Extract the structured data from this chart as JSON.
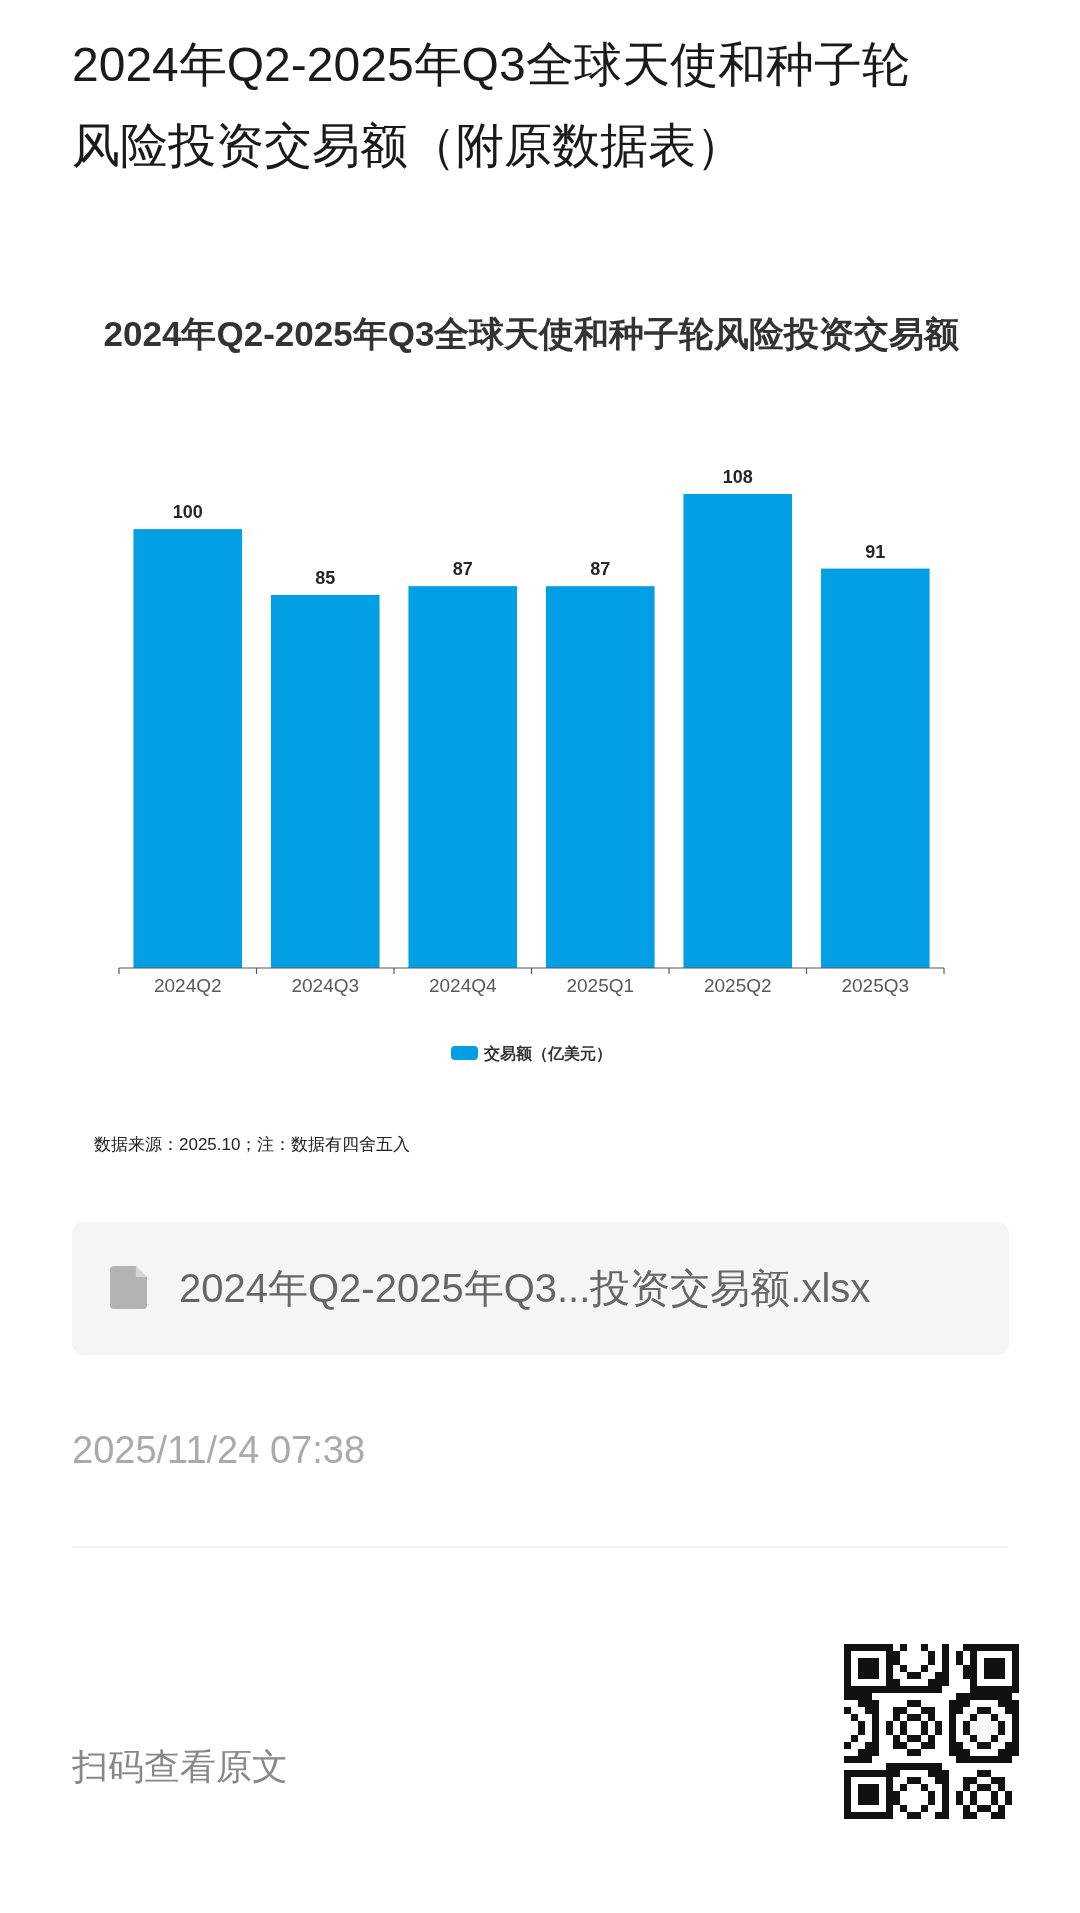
{
  "chart_data": {
    "type": "bar",
    "title": "2024年Q2-2025年Q3全球天使和种子轮风险投资交易额（附原数据表）",
    "subtitle": "2024年Q2-2025年Q3全球天使和种子轮风险投资交易额",
    "categories": [
      "2024Q2",
      "2024Q3",
      "2024Q4",
      "2025Q1",
      "2025Q2",
      "2025Q3"
    ],
    "series": [
      {
        "name": "交易额（亿美元）",
        "color": "#039fe5",
        "values": [
          100,
          85,
          87,
          87,
          108,
          91
        ]
      }
    ],
    "data_labels": true,
    "legend": "bottom",
    "tick_labels": "x",
    "annotations": [
      "数据来源：2025.10；注：数据有四舍五入",
      "2024年Q2-2025年Q3...投资交易额.xlsx",
      "2025/11/24 07:38",
      "扫码查看原文"
    ]
  }
}
